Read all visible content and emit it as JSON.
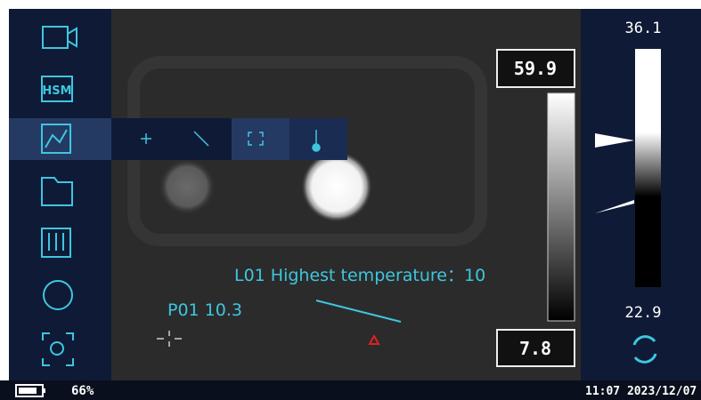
{
  "menu": {
    "hsm_label": "HSM"
  },
  "image_scale": {
    "max": "59.9",
    "min": "7.8"
  },
  "range_scale": {
    "max": "36.1",
    "min": "22.9"
  },
  "annotations": {
    "line_label": "L01 Highest temperature：10",
    "point_label": "P01 10.3"
  },
  "status": {
    "battery": "66%",
    "datetime": "11:07 2023/12/07"
  }
}
